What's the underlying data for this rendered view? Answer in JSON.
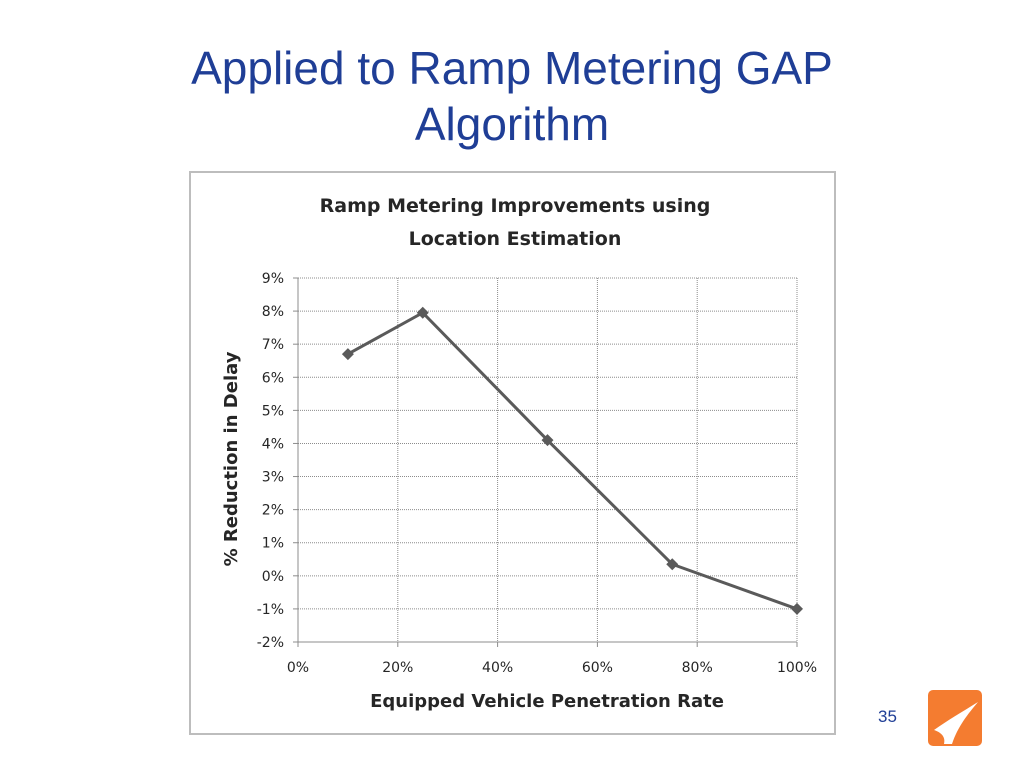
{
  "slide": {
    "title_line1": "Applied to Ramp Metering GAP",
    "title_line2": "Algorithm",
    "page_number": "35",
    "logo_icon": "orange-swoosh-logo-icon",
    "title_color": "#1f3e96",
    "logo_color": "#f47c30"
  },
  "chart_data": {
    "type": "line",
    "title_line1": "Ramp Metering Improvements using",
    "title_line2": "Location Estimation",
    "xlabel": "Equipped Vehicle Penetration Rate",
    "ylabel": "% Reduction in Delay",
    "x_ticks": [
      "0%",
      "20%",
      "40%",
      "60%",
      "80%",
      "100%"
    ],
    "y_ticks": [
      "9%",
      "8%",
      "7%",
      "6%",
      "5%",
      "4%",
      "3%",
      "2%",
      "1%",
      "0%",
      "-1%",
      "-2%"
    ],
    "xlim": [
      0,
      100
    ],
    "ylim": [
      -2,
      9
    ],
    "grid": true,
    "legend": "none",
    "marker": "diamond",
    "line_color": "#5a5a5a",
    "series": [
      {
        "x": [
          10,
          25,
          50,
          75,
          100
        ],
        "values": [
          6.7,
          7.95,
          4.1,
          0.35,
          -1.0
        ]
      }
    ]
  }
}
